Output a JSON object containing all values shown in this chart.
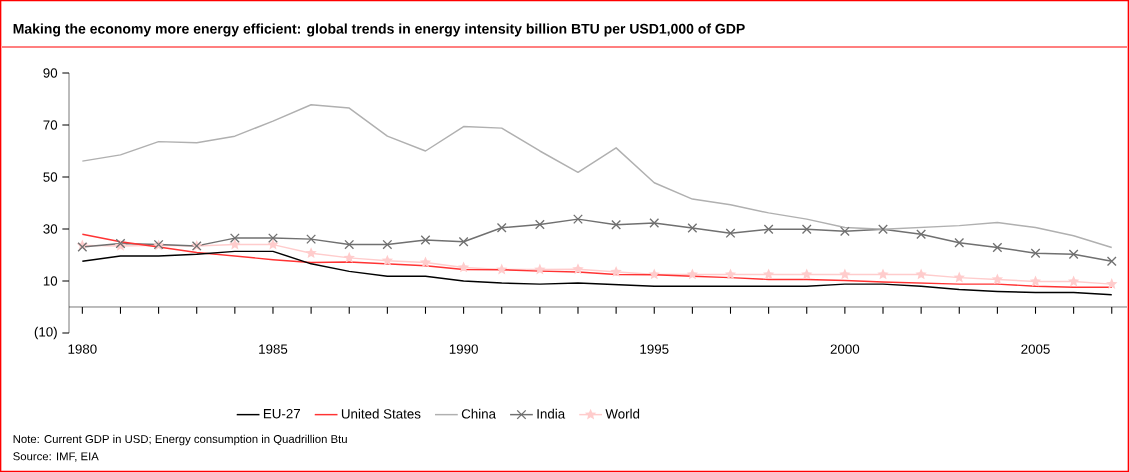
{
  "chart_data": {
    "type": "line",
    "title": "Making the economy more energy efficient: global trends in energy intensity billion BTU per USD1,000 of GDP",
    "x": [
      1980,
      1981,
      1982,
      1983,
      1984,
      1985,
      1986,
      1987,
      1988,
      1989,
      1990,
      1991,
      1992,
      1993,
      1994,
      1995,
      1996,
      1997,
      1998,
      1999,
      2000,
      2001,
      2002,
      2003,
      2004,
      2005,
      2006,
      2007
    ],
    "series": [
      {
        "name": "EU-27",
        "color": "#000000",
        "values": [
          17.6,
          19.6,
          19.6,
          20.3,
          21.4,
          21.4,
          16.6,
          13.7,
          11.8,
          11.8,
          10.0,
          9.2,
          8.8,
          9.2,
          8.6,
          8.0,
          8.0,
          8.0,
          8.0,
          8.0,
          8.8,
          8.8,
          8.0,
          6.7,
          6.0,
          5.6,
          5.6,
          4.7
        ]
      },
      {
        "name": "United States",
        "color": "#ff3333",
        "values": [
          28.0,
          25.1,
          23.1,
          21.0,
          19.6,
          18.2,
          17.1,
          17.3,
          16.6,
          15.9,
          14.4,
          14.3,
          13.8,
          13.5,
          12.5,
          12.4,
          11.8,
          11.3,
          10.6,
          10.6,
          10.2,
          9.6,
          9.2,
          8.8,
          8.8,
          8.0,
          7.6,
          7.6
        ]
      },
      {
        "name": "China",
        "color": "#b0b0b0",
        "values": [
          56.1,
          58.5,
          63.6,
          63.2,
          65.7,
          71.5,
          77.8,
          76.5,
          65.7,
          60.0,
          69.4,
          68.8,
          60.0,
          51.8,
          61.2,
          47.8,
          41.5,
          39.3,
          36.2,
          33.8,
          30.6,
          29.9,
          30.6,
          31.3,
          32.5,
          30.6,
          27.4,
          22.9
        ]
      },
      {
        "name": "India",
        "color": "#707070",
        "marker": "cross",
        "values": [
          23.1,
          24.4,
          24.0,
          23.5,
          26.5,
          26.5,
          26.1,
          24.0,
          24.0,
          25.8,
          25.1,
          30.5,
          31.7,
          33.8,
          31.6,
          32.3,
          30.4,
          28.4,
          29.9,
          29.9,
          29.1,
          29.9,
          28.0,
          24.7,
          22.9,
          20.7,
          20.3,
          17.6
        ]
      },
      {
        "name": "World",
        "color": "#ffcccc",
        "marker": "star",
        "values": [
          23.7,
          23.5,
          23.7,
          23.5,
          24.0,
          24.0,
          20.7,
          18.9,
          17.8,
          17.1,
          15.2,
          14.4,
          14.4,
          14.5,
          13.5,
          12.5,
          12.5,
          12.5,
          12.5,
          12.5,
          12.5,
          12.5,
          12.5,
          11.3,
          10.6,
          9.8,
          9.8,
          8.8
        ]
      }
    ],
    "xlim": [
      1979.65,
      2007.4
    ],
    "ylim": [
      -10,
      90
    ],
    "xticks": [
      1980,
      {
        "value": 1981,
        "label": null
      },
      {
        "value": 1982,
        "label": null
      },
      {
        "value": 1983,
        "label": null
      },
      {
        "value": 1984,
        "label": null
      },
      1985,
      {
        "value": 1986,
        "label": null
      },
      {
        "value": 1987,
        "label": null
      },
      {
        "value": 1988,
        "label": null
      },
      {
        "value": 1989,
        "label": null
      },
      1990,
      {
        "value": 1991,
        "label": null
      },
      {
        "value": 1992,
        "label": null
      },
      {
        "value": 1993,
        "label": null
      },
      {
        "value": 1994,
        "label": null
      },
      1995,
      {
        "value": 1996,
        "label": null
      },
      {
        "value": 1997,
        "label": null
      },
      {
        "value": 1998,
        "label": null
      },
      {
        "value": 1999,
        "label": null
      },
      2000,
      {
        "value": 2001,
        "label": null
      },
      {
        "value": 2002,
        "label": null
      },
      {
        "value": 2003,
        "label": null
      },
      {
        "value": 2004,
        "label": null
      },
      2005,
      {
        "value": 2006,
        "label": null
      },
      {
        "value": 2007,
        "label": null
      }
    ],
    "yticks": [
      {
        "value": -10,
        "label": "(10)"
      },
      10,
      30,
      50,
      70,
      90
    ],
    "grid": false,
    "legend": "bottom",
    "annotations": [
      "Note: Current GDP in USD; Energy consumption in Quadrillion Btu",
      "Source: IMF, EIA"
    ]
  }
}
